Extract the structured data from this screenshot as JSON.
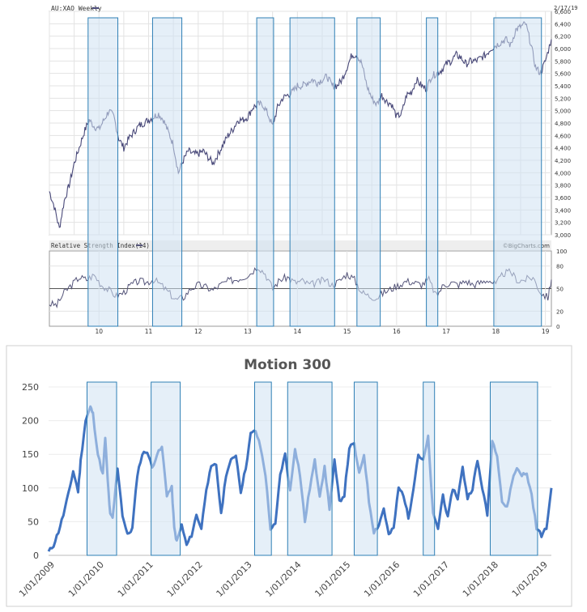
{
  "colors": {
    "shade_fill": "#cfe2f3",
    "shade_stroke": "#2e7fb5",
    "price_line": "#4a4a7a",
    "rsi_line": "#55557a",
    "motion_line": "#3f72c0",
    "grid": "#e3e3e3"
  },
  "chart_data": [
    {
      "type": "line",
      "id": "price",
      "title": "AU:XAO Weekly",
      "legend_swatch": "line",
      "date_label": "2/17/19",
      "x_range_years": [
        2009.0,
        2019.12
      ],
      "ylim": [
        3000,
        6600
      ],
      "y_ticks": [
        "3,000",
        "3,200",
        "3,400",
        "3,600",
        "3,800",
        "4,000",
        "4,200",
        "4,400",
        "4,600",
        "4,800",
        "5,000",
        "5,200",
        "5,400",
        "5,600",
        "5,800",
        "6,000",
        "6,200",
        "6,400",
        "6,600"
      ],
      "y_tick_values": [
        3000,
        3200,
        3400,
        3600,
        3800,
        4000,
        4200,
        4400,
        4600,
        4800,
        5000,
        5200,
        5400,
        5600,
        5800,
        6000,
        6200,
        6400,
        6600
      ],
      "x": [
        2009.0,
        2009.1,
        2009.2,
        2009.3,
        2009.4,
        2009.5,
        2009.6,
        2009.7,
        2009.8,
        2009.9,
        2010.0,
        2010.1,
        2010.2,
        2010.3,
        2010.4,
        2010.5,
        2010.6,
        2010.7,
        2010.8,
        2010.9,
        2011.0,
        2011.1,
        2011.2,
        2011.3,
        2011.4,
        2011.5,
        2011.6,
        2011.7,
        2011.8,
        2011.9,
        2012.0,
        2012.1,
        2012.2,
        2012.3,
        2012.4,
        2012.5,
        2012.6,
        2012.7,
        2012.8,
        2012.9,
        2013.0,
        2013.1,
        2013.2,
        2013.3,
        2013.4,
        2013.5,
        2013.6,
        2013.7,
        2013.8,
        2013.9,
        2014.0,
        2014.1,
        2014.2,
        2014.3,
        2014.4,
        2014.5,
        2014.6,
        2014.7,
        2014.8,
        2014.9,
        2015.0,
        2015.1,
        2015.2,
        2015.3,
        2015.4,
        2015.5,
        2015.6,
        2015.7,
        2015.8,
        2015.9,
        2016.0,
        2016.1,
        2016.2,
        2016.3,
        2016.4,
        2016.5,
        2016.6,
        2016.7,
        2016.8,
        2016.9,
        2017.0,
        2017.1,
        2017.2,
        2017.3,
        2017.4,
        2017.5,
        2017.6,
        2017.7,
        2017.8,
        2017.9,
        2018.0,
        2018.1,
        2018.2,
        2018.3,
        2018.4,
        2018.5,
        2018.6,
        2018.7,
        2018.8,
        2018.9,
        2019.0,
        2019.12
      ],
      "values": [
        3700,
        3450,
        3100,
        3550,
        3800,
        4150,
        4400,
        4650,
        4850,
        4750,
        4700,
        4850,
        5000,
        4900,
        4550,
        4400,
        4550,
        4650,
        4750,
        4800,
        4850,
        4900,
        4950,
        4850,
        4650,
        4450,
        4000,
        4200,
        4350,
        4300,
        4300,
        4350,
        4250,
        4150,
        4300,
        4450,
        4600,
        4700,
        4850,
        4850,
        4900,
        5050,
        5100,
        5100,
        4950,
        4750,
        5050,
        5200,
        5250,
        5300,
        5400,
        5400,
        5450,
        5500,
        5450,
        5500,
        5550,
        5400,
        5400,
        5500,
        5700,
        5900,
        5900,
        5750,
        5400,
        5200,
        5100,
        5250,
        5150,
        5100,
        4900,
        4950,
        5250,
        5300,
        5500,
        5400,
        5350,
        5550,
        5600,
        5650,
        5750,
        5800,
        5900,
        5850,
        5750,
        5800,
        5800,
        5850,
        5900,
        6000,
        6050,
        6100,
        6150,
        6050,
        6300,
        6350,
        6400,
        6100,
        5700,
        5600,
        5800,
        6150
      ]
    },
    {
      "type": "line",
      "id": "rsi",
      "title": "Relative Strength Index(14)",
      "legend_swatch": "line",
      "source": "©BigCharts.com",
      "x_range_years": [
        2009.0,
        2019.12
      ],
      "ylim": [
        0,
        100
      ],
      "y_ticks": [
        "100",
        "80",
        "50",
        "20",
        "0"
      ],
      "y_tick_values": [
        100,
        80,
        50,
        20,
        0
      ],
      "reference_line": 50,
      "x_ticks": [
        "10",
        "11",
        "12",
        "13",
        "14",
        "15",
        "16",
        "17",
        "18",
        "19"
      ],
      "x_tick_values": [
        2010,
        2011,
        2012,
        2013,
        2014,
        2015,
        2016,
        2017,
        2018,
        2019
      ],
      "x": [
        2009.0,
        2009.15,
        2009.3,
        2009.45,
        2009.6,
        2009.75,
        2009.9,
        2010.05,
        2010.2,
        2010.35,
        2010.5,
        2010.65,
        2010.8,
        2010.95,
        2011.1,
        2011.25,
        2011.4,
        2011.55,
        2011.7,
        2011.85,
        2012.0,
        2012.15,
        2012.3,
        2012.45,
        2012.6,
        2012.75,
        2012.9,
        2013.05,
        2013.2,
        2013.35,
        2013.5,
        2013.65,
        2013.8,
        2013.95,
        2014.1,
        2014.25,
        2014.4,
        2014.55,
        2014.7,
        2014.85,
        2015.0,
        2015.15,
        2015.3,
        2015.45,
        2015.6,
        2015.75,
        2015.9,
        2016.05,
        2016.2,
        2016.35,
        2016.5,
        2016.65,
        2016.8,
        2016.95,
        2017.1,
        2017.25,
        2017.4,
        2017.55,
        2017.7,
        2017.85,
        2018.0,
        2018.15,
        2018.3,
        2018.45,
        2018.6,
        2018.75,
        2018.9,
        2019.05,
        2019.12
      ],
      "values": [
        30,
        28,
        45,
        55,
        65,
        62,
        68,
        55,
        48,
        40,
        45,
        55,
        60,
        58,
        62,
        55,
        45,
        35,
        38,
        50,
        55,
        52,
        48,
        55,
        60,
        62,
        65,
        70,
        80,
        70,
        50,
        62,
        65,
        58,
        60,
        55,
        58,
        62,
        55,
        60,
        70,
        62,
        45,
        40,
        38,
        45,
        50,
        55,
        60,
        58,
        55,
        62,
        40,
        55,
        58,
        55,
        60,
        55,
        58,
        62,
        55,
        70,
        72,
        60,
        62,
        65,
        45,
        38,
        62
      ]
    },
    {
      "type": "line",
      "id": "motion",
      "title": "Motion 300",
      "x_range_years": [
        2009.0,
        2019.2
      ],
      "ylim": [
        0,
        250
      ],
      "y_ticks": [
        "0",
        "50",
        "100",
        "150",
        "200",
        "250"
      ],
      "y_tick_values": [
        0,
        50,
        100,
        150,
        200,
        250
      ],
      "x_ticks": [
        "1/01/2009",
        "1/01/2010",
        "1/01/2011",
        "1/01/2012",
        "1/01/2013",
        "1/01/2014",
        "1/01/2015",
        "1/01/2016",
        "1/01/2017",
        "1/01/2018",
        "1/01/2019"
      ],
      "x_tick_values": [
        2009,
        2010,
        2011,
        2012,
        2013,
        2014,
        2015,
        2016,
        2017,
        2018,
        2019
      ],
      "x": [
        2009.0,
        2009.1,
        2009.2,
        2009.3,
        2009.4,
        2009.5,
        2009.6,
        2009.65,
        2009.75,
        2009.85,
        2009.9,
        2010.0,
        2010.1,
        2010.15,
        2010.2,
        2010.25,
        2010.3,
        2010.4,
        2010.5,
        2010.6,
        2010.7,
        2010.8,
        2010.9,
        2011.0,
        2011.1,
        2011.2,
        2011.3,
        2011.4,
        2011.5,
        2011.55,
        2011.6,
        2011.7,
        2011.8,
        2011.9,
        2012.0,
        2012.1,
        2012.2,
        2012.3,
        2012.4,
        2012.5,
        2012.6,
        2012.7,
        2012.8,
        2012.9,
        2013.0,
        2013.1,
        2013.2,
        2013.3,
        2013.4,
        2013.5,
        2013.6,
        2013.7,
        2013.8,
        2013.9,
        2014.0,
        2014.1,
        2014.2,
        2014.3,
        2014.4,
        2014.5,
        2014.6,
        2014.7,
        2014.8,
        2014.9,
        2015.0,
        2015.1,
        2015.2,
        2015.3,
        2015.4,
        2015.5,
        2015.6,
        2015.7,
        2015.8,
        2015.9,
        2016.0,
        2016.1,
        2016.2,
        2016.3,
        2016.4,
        2016.5,
        2016.6,
        2016.7,
        2016.8,
        2016.9,
        2017.0,
        2017.1,
        2017.2,
        2017.3,
        2017.4,
        2017.5,
        2017.6,
        2017.7,
        2017.8,
        2017.9,
        2018.0,
        2018.1,
        2018.2,
        2018.3,
        2018.4,
        2018.5,
        2018.6,
        2018.7,
        2018.8,
        2018.9,
        2019.0,
        2019.1,
        2019.2
      ],
      "values": [
        5,
        15,
        35,
        60,
        90,
        125,
        95,
        140,
        200,
        220,
        210,
        150,
        120,
        175,
        110,
        60,
        55,
        130,
        60,
        30,
        40,
        120,
        150,
        155,
        130,
        150,
        160,
        90,
        100,
        40,
        20,
        45,
        15,
        30,
        60,
        40,
        100,
        130,
        135,
        60,
        120,
        140,
        150,
        95,
        130,
        180,
        185,
        160,
        120,
        40,
        45,
        120,
        150,
        95,
        160,
        120,
        50,
        100,
        140,
        90,
        130,
        70,
        140,
        80,
        90,
        160,
        165,
        120,
        150,
        80,
        35,
        45,
        70,
        30,
        40,
        100,
        90,
        55,
        100,
        150,
        140,
        175,
        60,
        40,
        90,
        55,
        100,
        85,
        130,
        85,
        100,
        140,
        100,
        60,
        170,
        150,
        80,
        70,
        110,
        130,
        120,
        120,
        90,
        40,
        30,
        40,
        100
      ]
    }
  ],
  "highlight_periods": [
    {
      "start": 2009.78,
      "end": 2010.38
    },
    {
      "start": 2011.08,
      "end": 2011.67
    },
    {
      "start": 2013.18,
      "end": 2013.52
    },
    {
      "start": 2013.85,
      "end": 2014.75
    },
    {
      "start": 2015.2,
      "end": 2015.67
    },
    {
      "start": 2016.6,
      "end": 2016.83
    },
    {
      "start": 2017.96,
      "end": 2018.92
    }
  ]
}
